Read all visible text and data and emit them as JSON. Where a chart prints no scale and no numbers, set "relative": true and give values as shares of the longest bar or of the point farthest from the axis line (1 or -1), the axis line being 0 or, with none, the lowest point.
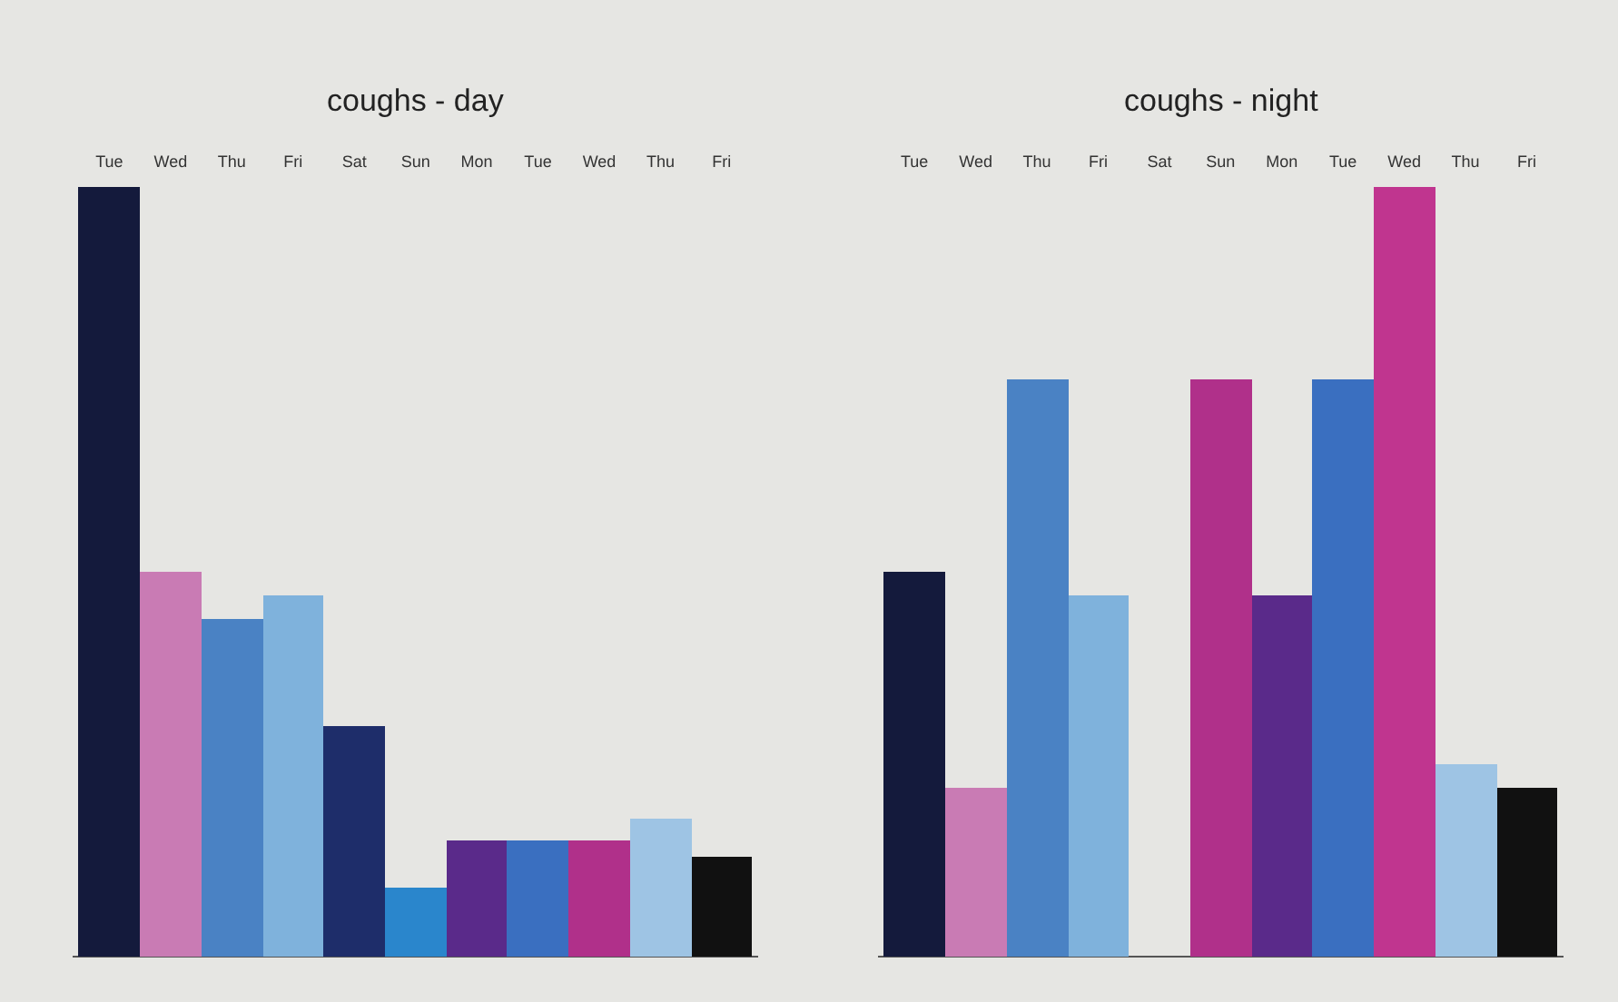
{
  "chart_data": [
    {
      "type": "bar",
      "title": "coughs - day",
      "relative": true,
      "categories": [
        "Tue",
        "Wed",
        "Thu",
        "Fri",
        "Sat",
        "Sun",
        "Mon",
        "Tue",
        "Wed",
        "Thu",
        "Fri"
      ],
      "colors": [
        "#141a3c",
        "#c97bb4",
        "#4a82c4",
        "#7fb2dc",
        "#1e2d6a",
        "#2a86cc",
        "#5a2a8a",
        "#3a6fc0",
        "#b0308a",
        "#9ec4e4",
        "#111111"
      ],
      "values": [
        1,
        0.5,
        0.44,
        0.47,
        0.3,
        0.09,
        0.15,
        0.15,
        0.15,
        0.18,
        0.13
      ]
    },
    {
      "type": "bar",
      "title": "coughs - night",
      "relative": true,
      "categories": [
        "Tue",
        "Wed",
        "Thu",
        "Fri",
        "Sat",
        "Sun",
        "Mon",
        "Tue",
        "Wed",
        "Thu",
        "Fri"
      ],
      "colors": [
        "#141a3c",
        "#c97bb4",
        "#4a82c4",
        "#7fb2dc",
        "#1e2d6a",
        "#b0308a",
        "#5a2a8a",
        "#3a6fc0",
        "#c0358f",
        "#9ec4e4",
        "#111111"
      ],
      "values": [
        0.5,
        0.22,
        0.75,
        0.47,
        0,
        0.75,
        0.47,
        0.75,
        1,
        0.25,
        0.22
      ]
    }
  ]
}
